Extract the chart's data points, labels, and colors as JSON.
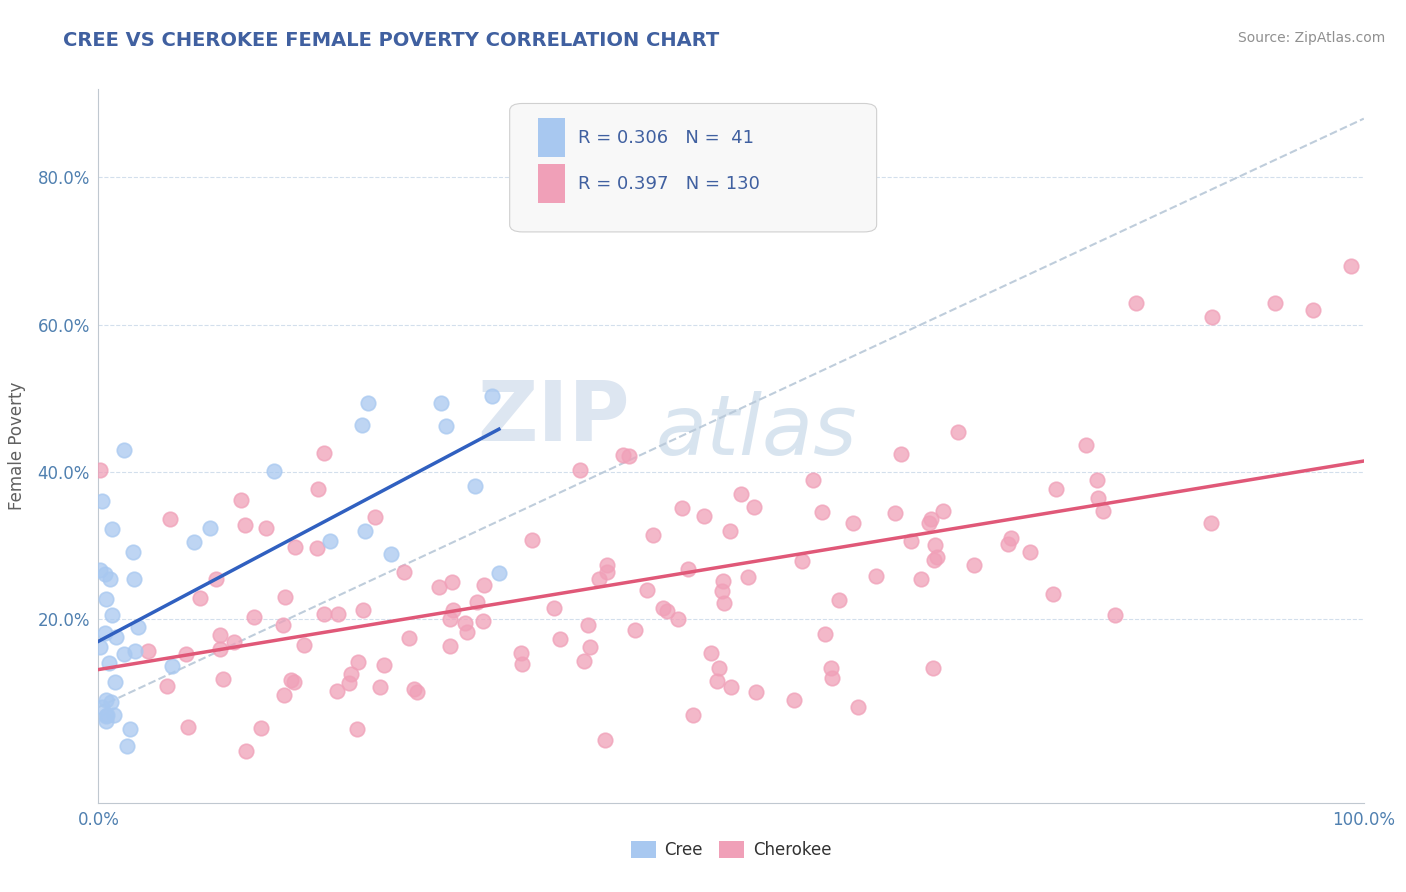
{
  "title": "CREE VS CHEROKEE FEMALE POVERTY CORRELATION CHART",
  "source_text": "Source: ZipAtlas.com",
  "ylabel": "Female Poverty",
  "xlim": [
    0,
    1.0
  ],
  "ylim": [
    -0.05,
    0.92
  ],
  "y_ticks": [
    0.2,
    0.4,
    0.6,
    0.8
  ],
  "y_tick_labels": [
    "20.0%",
    "40.0%",
    "60.0%",
    "80.0%"
  ],
  "x_tick_positions": [
    0.0,
    0.1,
    0.2,
    0.3,
    0.4,
    0.5,
    0.6,
    0.7,
    0.8,
    0.9,
    1.0
  ],
  "x_tick_labels": [
    "0.0%",
    "",
    "",
    "",
    "",
    "",
    "",
    "",
    "",
    "",
    "100.0%"
  ],
  "cree_color": "#a8c8f0",
  "cherokee_color": "#f0a0b8",
  "cree_line_color": "#3060c0",
  "cherokee_line_color": "#e05878",
  "trend_line_color": "#b8c8d8",
  "background_color": "#ffffff",
  "grid_color": "#c8d8e8",
  "cree_R": 0.306,
  "cree_N": 41,
  "cherokee_R": 0.397,
  "cherokee_N": 130,
  "watermark_zip": "ZIP",
  "watermark_atlas": "atlas",
  "title_color": "#4060a0",
  "tick_color": "#5080b0",
  "ylabel_color": "#606060",
  "source_color": "#909090",
  "legend_bg": "#f8f8f8",
  "legend_border": "#d0d0d0"
}
